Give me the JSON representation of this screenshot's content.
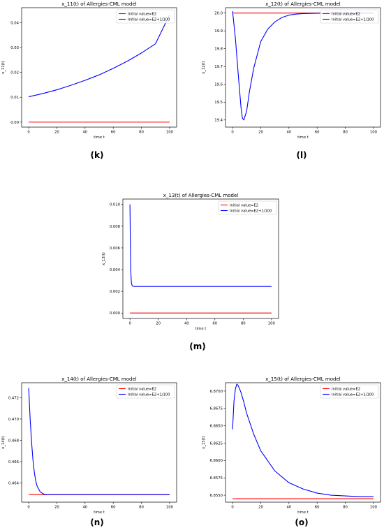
{
  "chart_data": [
    {
      "type": "line",
      "panel_label": "(k)",
      "title": "x_11(t) of Allergies-CML model",
      "xlabel": "time t",
      "ylabel": "x_11(t)",
      "xlim": [
        -5,
        105
      ],
      "ylim": [
        -0.002,
        0.046
      ],
      "xticks": [
        0,
        20,
        40,
        60,
        80,
        100
      ],
      "yticks": [
        0.0,
        0.01,
        0.02,
        0.03,
        0.04
      ],
      "ytick_labels": [
        "0.00",
        "0.01",
        "0.02",
        "0.03",
        "0.04"
      ],
      "legend_position": "top-right",
      "series": [
        {
          "name": "Initial value=E2",
          "color": "#ff0000",
          "x": [
            0,
            100
          ],
          "y": [
            0.0,
            0.0
          ]
        },
        {
          "name": "Initial value=E2+1/100",
          "color": "#0000ff",
          "x": [
            0,
            10,
            20,
            30,
            40,
            50,
            60,
            70,
            80,
            90,
            100
          ],
          "y": [
            0.0102,
            0.0115,
            0.013,
            0.0148,
            0.0168,
            0.019,
            0.0216,
            0.0245,
            0.0278,
            0.0315,
            0.0432
          ]
        }
      ]
    },
    {
      "type": "line",
      "panel_label": "(l)",
      "title": "x_12(t) of Allergies-CML model",
      "xlabel": "time t",
      "ylabel": "x_12(t)",
      "xlim": [
        -5,
        105
      ],
      "ylim": [
        19.36,
        20.03
      ],
      "xticks": [
        0,
        20,
        40,
        60,
        80,
        100
      ],
      "yticks": [
        19.4,
        19.5,
        19.6,
        19.7,
        19.8,
        19.9,
        20.0
      ],
      "ytick_labels": [
        "19.4",
        "19.5",
        "19.6",
        "19.7",
        "19.8",
        "19.9",
        "20.0"
      ],
      "legend_position": "top-right",
      "series": [
        {
          "name": "Initial value=E2",
          "color": "#ff0000",
          "x": [
            0,
            100
          ],
          "y": [
            20.0,
            20.0
          ]
        },
        {
          "name": "Initial value=E2+1/100",
          "color": "#0000ff",
          "x": [
            0,
            2,
            4,
            6,
            7,
            8,
            10,
            12,
            15,
            20,
            25,
            30,
            35,
            40,
            45,
            50,
            60,
            70,
            80,
            100
          ],
          "y": [
            20.01,
            19.86,
            19.66,
            19.47,
            19.41,
            19.4,
            19.45,
            19.56,
            19.69,
            19.84,
            19.91,
            19.95,
            19.975,
            19.988,
            19.994,
            19.997,
            19.999,
            20.0,
            20.0,
            20.0
          ]
        }
      ]
    },
    {
      "type": "line",
      "panel_label": "(m)",
      "title": "x_13(t) of Allergies-CML model",
      "xlabel": "time t",
      "ylabel": "x_13(t)",
      "xlim": [
        -5,
        105
      ],
      "ylim": [
        -0.0005,
        0.0105
      ],
      "xticks": [
        0,
        20,
        40,
        60,
        80,
        100
      ],
      "yticks": [
        0.0,
        0.002,
        0.004,
        0.006,
        0.008,
        0.01
      ],
      "ytick_labels": [
        "0.000",
        "0.002",
        "0.004",
        "0.006",
        "0.008",
        "0.010"
      ],
      "legend_position": "top-right",
      "series": [
        {
          "name": "Initial value=E2",
          "color": "#ff0000",
          "x": [
            0,
            100
          ],
          "y": [
            0.0,
            0.0
          ]
        },
        {
          "name": "Initial value=E2+1/100",
          "color": "#0000ff",
          "x": [
            0,
            0.3,
            0.6,
            1,
            1.5,
            2,
            3,
            100
          ],
          "y": [
            0.01,
            0.0062,
            0.0038,
            0.0028,
            0.00255,
            0.00248,
            0.00245,
            0.00245
          ]
        }
      ]
    },
    {
      "type": "line",
      "panel_label": "(n)",
      "title": "x_14(t) of Allergies-CML model",
      "xlabel": "time t",
      "ylabel": "x_14(t)",
      "xlim": [
        -5,
        105
      ],
      "ylim": [
        0.4622,
        0.4734
      ],
      "xticks": [
        0,
        20,
        40,
        60,
        80,
        100
      ],
      "yticks": [
        0.464,
        0.466,
        0.468,
        0.47,
        0.472
      ],
      "ytick_labels": [
        "0.464",
        "0.466",
        "0.468",
        "0.470",
        "0.472"
      ],
      "legend_position": "top-right",
      "series": [
        {
          "name": "Initial value=E2",
          "color": "#ff0000",
          "x": [
            0,
            100
          ],
          "y": [
            0.4629,
            0.4629
          ]
        },
        {
          "name": "Initial value=E2+1/100",
          "color": "#0000ff",
          "x": [
            0,
            1,
            2,
            3,
            4,
            5,
            6,
            8,
            10,
            12,
            15,
            100
          ],
          "y": [
            0.4729,
            0.4701,
            0.4679,
            0.4662,
            0.465,
            0.4642,
            0.4637,
            0.4632,
            0.463,
            0.4629,
            0.4629,
            0.4629
          ]
        }
      ]
    },
    {
      "type": "line",
      "panel_label": "(o)",
      "title": "x_15(t) of Allergies-CML model",
      "xlabel": "time t",
      "ylabel": "x_15(t)",
      "xlim": [
        -5,
        105
      ],
      "ylim": [
        6.854,
        6.8712
      ],
      "xticks": [
        0,
        20,
        40,
        60,
        80,
        100
      ],
      "yticks": [
        6.855,
        6.8575,
        6.86,
        6.8625,
        6.865,
        6.8675,
        6.87
      ],
      "ytick_labels": [
        "6.8550",
        "6.8575",
        "6.8600",
        "6.8625",
        "6.8650",
        "6.8675",
        "6.8700"
      ],
      "legend_position": "top-right",
      "series": [
        {
          "name": "Initial value=E2",
          "color": "#ff0000",
          "x": [
            0,
            100
          ],
          "y": [
            6.8545,
            6.8545
          ]
        },
        {
          "name": "Initial value=E2+1/100",
          "color": "#0000ff",
          "x": [
            0,
            1,
            2,
            3,
            4,
            6,
            8,
            10,
            15,
            20,
            30,
            40,
            50,
            60,
            70,
            80,
            90,
            100
          ],
          "y": [
            6.8645,
            6.8685,
            6.8703,
            6.871,
            6.8708,
            6.8698,
            6.8684,
            6.8668,
            6.8638,
            6.8614,
            6.8585,
            6.8568,
            6.8559,
            6.8553,
            6.855,
            6.8549,
            6.8548,
            6.8548
          ]
        }
      ]
    }
  ]
}
